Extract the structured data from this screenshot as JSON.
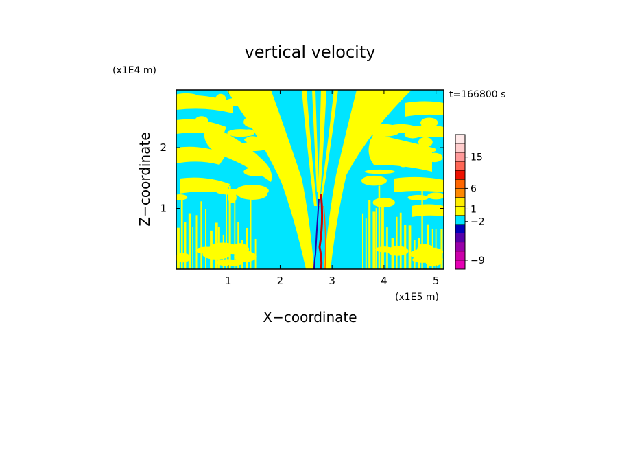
{
  "chart_data": {
    "type": "heatmap",
    "title": "vertical velocity",
    "xlabel": "X−coordinate",
    "ylabel": "Z−coordinate",
    "x_unit": "(x1E5 m)",
    "y_unit": "(x1E4 m)",
    "time_label": "t=166800 s",
    "xlim": [
      0,
      5.15
    ],
    "ylim": [
      0,
      2.95
    ],
    "x_ticks": [
      {
        "v": 1,
        "label": "1"
      },
      {
        "v": 2,
        "label": "2"
      },
      {
        "v": 3,
        "label": "3"
      },
      {
        "v": 4,
        "label": "4"
      },
      {
        "v": 5,
        "label": "5"
      }
    ],
    "y_ticks": [
      {
        "v": 1,
        "label": "1"
      },
      {
        "v": 2,
        "label": "2"
      }
    ],
    "colorbar": {
      "levels": [
        {
          "color": "#e600b4"
        },
        {
          "color": "#cc00aa"
        },
        {
          "color": "#9900aa"
        },
        {
          "color": "#5500aa"
        },
        {
          "color": "#0000bb"
        },
        {
          "color": "#00e5ff"
        },
        {
          "color": "#ffff00"
        },
        {
          "color": "#ffee00"
        },
        {
          "color": "#ff8800"
        },
        {
          "color": "#ff6600"
        },
        {
          "color": "#ee1100"
        },
        {
          "color": "#ff6655"
        },
        {
          "color": "#ff9999"
        },
        {
          "color": "#ffcccc"
        },
        {
          "color": "#ffe8e8"
        }
      ],
      "labels": [
        {
          "text": "−9",
          "at_level": 1
        },
        {
          "text": "−2",
          "at_level": 5.3
        },
        {
          "text": "1",
          "at_level": 6.7
        },
        {
          "text": "6",
          "at_level": 9
        },
        {
          "text": "15",
          "at_level": 12.5
        }
      ]
    },
    "field": {
      "background_color": "#00e5ff",
      "positive_color": "#ffff00",
      "strong_color": "#cc0000",
      "negative_strong_color": "#2200aa"
    }
  }
}
